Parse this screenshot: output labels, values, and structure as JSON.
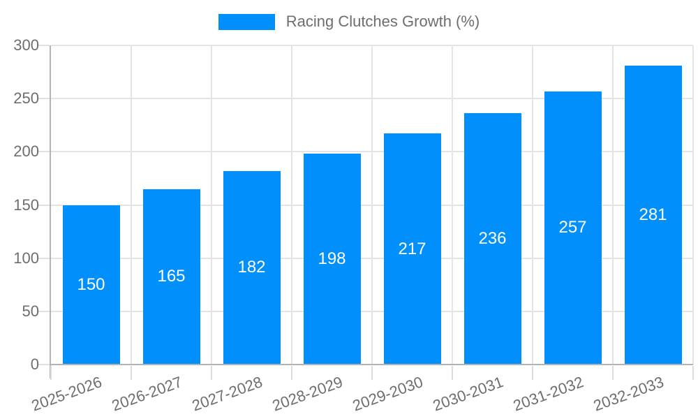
{
  "chart_data": {
    "type": "bar",
    "title": "Racing Clutches Growth (%)",
    "categories": [
      "2025-2026",
      "2026-2027",
      "2027-2028",
      "2028-2029",
      "2029-2030",
      "2030-2031",
      "2031-2032",
      "2032-2033"
    ],
    "series": [
      {
        "name": "Racing Clutches Growth (%)",
        "color": "#008FFB",
        "values": [
          150,
          165,
          182,
          198,
          217,
          236,
          257,
          281
        ]
      }
    ],
    "xlabel": "",
    "ylabel": "",
    "ylim": [
      0,
      300
    ],
    "yticks": [
      0,
      50,
      100,
      150,
      200,
      250,
      300
    ],
    "grid": true,
    "legend_position": "top",
    "data_labels": true,
    "data_label_color": "#ffffff",
    "colors": {
      "bar": "#008FFB",
      "grid": "#e4e4e4",
      "axis": "#b3b3b3",
      "text": "#6e6e6e"
    }
  }
}
